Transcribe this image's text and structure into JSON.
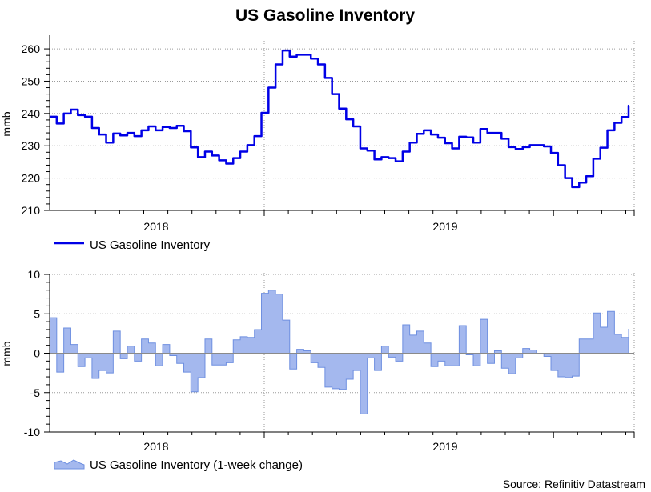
{
  "colors": {
    "line": "#0000e6",
    "area_fill": "#a4b8ee",
    "area_stroke": "#6e8fe0",
    "zero_line": "#8a8a8a"
  },
  "chart_data": [
    {
      "type": "line",
      "title": "US Gasoline Inventory",
      "ylabel": "mmb",
      "ylim": [
        210,
        262
      ],
      "yticks": [
        210,
        220,
        230,
        240,
        250,
        260
      ],
      "x_tick_labels": [
        "2018",
        "2019"
      ],
      "legend": "US Gasoline Inventory",
      "series": [
        {
          "name": "US Gasoline Inventory",
          "values": [
            239,
            236.9,
            240,
            241.2,
            239.5,
            239,
            235.5,
            233.5,
            231,
            233.8,
            233.2,
            234,
            233,
            234.8,
            236,
            234.8,
            235.8,
            235.5,
            236.2,
            234.5,
            229.5,
            226.5,
            228.2,
            227,
            225.5,
            224.5,
            226.2,
            228.2,
            230.2,
            233,
            240.2,
            248,
            255.2,
            259.5,
            257.6,
            258.2,
            258.2,
            257,
            255.2,
            251,
            246,
            241.5,
            238.2,
            236,
            229.2,
            228.5,
            225.8,
            226.5,
            226.2,
            225.2,
            228.2,
            231,
            233.7,
            234.8,
            233.5,
            232.5,
            230.8,
            229.2,
            232.8,
            232.6,
            231,
            235.2,
            234,
            234,
            232.2,
            229.6,
            229,
            229.6,
            230.2,
            230.2,
            229.8,
            227.8,
            224,
            220,
            217.2,
            218.6,
            220.6,
            226,
            229.4,
            234.8,
            237.1,
            238.9,
            242.4
          ]
        }
      ]
    },
    {
      "type": "area",
      "ylabel": "mmb",
      "ylim": [
        -10,
        10
      ],
      "yticks": [
        -10,
        -5,
        0,
        5,
        10
      ],
      "x_tick_labels": [
        "2018",
        "2019"
      ],
      "legend": "US Gasoline Inventory (1-week change)",
      "series": [
        {
          "name": "US Gasoline Inventory (1-week change)",
          "values": [
            4.5,
            -2.4,
            3.2,
            1.1,
            -1.7,
            -0.6,
            -3.2,
            -2.2,
            -2.5,
            2.8,
            -0.7,
            0.9,
            -1.0,
            1.8,
            1.3,
            -1.6,
            1.1,
            -0.3,
            -1.3,
            -2.4,
            -4.9,
            -3.1,
            1.8,
            -1.5,
            -1.5,
            -1.2,
            1.7,
            2.1,
            2.0,
            3.0,
            7.6,
            8.0,
            7.5,
            4.2,
            -2.0,
            0.5,
            0.3,
            -1.2,
            -1.8,
            -4.3,
            -4.5,
            -4.6,
            -3.3,
            -2.2,
            -7.7,
            -0.6,
            -2.2,
            0.9,
            -0.5,
            -1.0,
            3.6,
            2.3,
            2.8,
            1.3,
            -1.7,
            -1.0,
            -1.6,
            -1.6,
            3.5,
            -0.2,
            -1.6,
            4.3,
            -1.3,
            0.3,
            -1.9,
            -2.6,
            -0.6,
            0.6,
            0.4,
            -0.1,
            -0.4,
            -2.2,
            -3.0,
            -3.1,
            -2.9,
            1.8,
            1.8,
            5.1,
            3.3,
            5.3,
            2.4,
            2.0,
            3.1
          ]
        }
      ]
    }
  ],
  "source": "Source: Refinitiv Datastream"
}
